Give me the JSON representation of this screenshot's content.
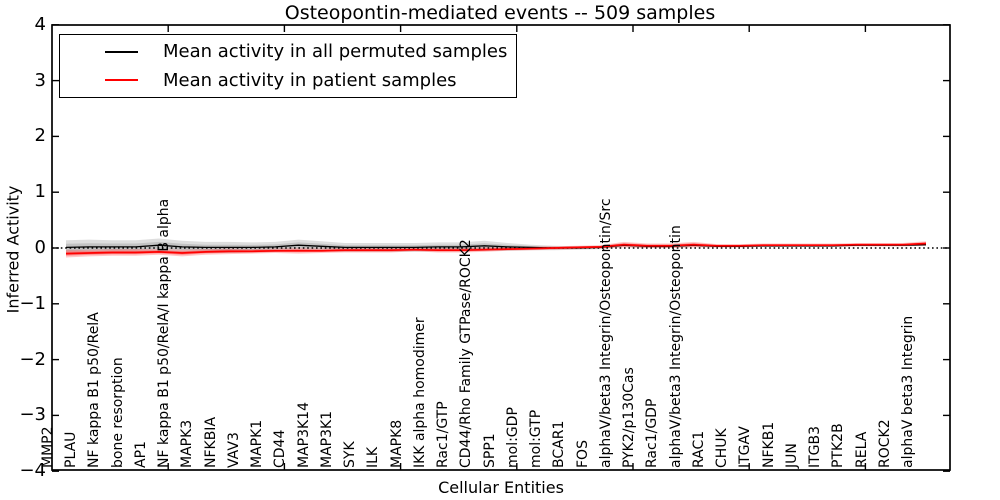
{
  "title": "Osteopontin-mediated events -- 509 samples",
  "axes": {
    "xlabel": "Cellular Entities",
    "ylabel": "Inferred Activity",
    "ytick_labels": [
      "4",
      "3",
      "2",
      "1",
      "0",
      "−1",
      "−2",
      "−3",
      "−4"
    ]
  },
  "legend": {
    "position": "upper left"
  },
  "chart_data": {
    "type": "line",
    "title": "Osteopontin-mediated events -- 509 samples",
    "xlabel": "Cellular Entities",
    "ylabel": "Inferred Activity",
    "ylim": [
      -4,
      4
    ],
    "yticks": [
      4,
      3,
      2,
      1,
      0,
      -1,
      -2,
      -3,
      -4
    ],
    "xticks": [
      5,
      10,
      15,
      20,
      25,
      30,
      35
    ],
    "grid": false,
    "legend_position": "upper left",
    "zero_line": {
      "style": "dotted",
      "y": 0,
      "color": "#000000"
    },
    "categories": [
      "MMP2",
      "PLAU",
      "NF kappa B1 p50/RelA",
      "bone resorption",
      "AP1",
      "NF kappa B1 p50/RelA/I kappa B alpha",
      "MAPK3",
      "NFKBIA",
      "VAV3",
      "MAPK1",
      "CD44",
      "MAP3K14",
      "MAP3K1",
      "SYK",
      "ILK",
      "MAPK8",
      "IKK alpha homodimer",
      "Rac1/GTP",
      "CD44/Rho Family GTPase/ROCK2",
      "SPP1",
      "mol:GDP",
      "mol:GTP",
      "BCAR1",
      "FOS",
      "alphaV/beta3 Integrin/Osteopontin/Src",
      "PYK2/p130Cas",
      "Rac1/GDP",
      "alphaV/beta3 Integrin/Osteopontin",
      "RAC1",
      "CHUK",
      "ITGAV",
      "NFKB1",
      "JUN",
      "ITGB3",
      "PTK2B",
      "RELA",
      "ROCK2",
      "alphaV beta3 Integrin"
    ],
    "series": [
      {
        "name": "Mean activity in all permuted samples",
        "color": "#000000",
        "values": [
          0.01,
          0.02,
          0.02,
          0.02,
          0.05,
          0.02,
          0.01,
          0.01,
          0.01,
          0.02,
          0.05,
          0.03,
          0.01,
          0.01,
          0.01,
          0.01,
          0.02,
          0.02,
          0.04,
          0.02,
          0.01,
          0.0,
          0.0,
          0.01,
          0.05,
          0.03,
          0.03,
          0.05,
          0.03,
          0.03,
          0.04,
          0.04,
          0.04,
          0.04,
          0.05,
          0.05,
          0.05,
          0.06
        ],
        "band_halfwidth": [
          0.13,
          0.13,
          0.12,
          0.12,
          0.12,
          0.11,
          0.1,
          0.1,
          0.09,
          0.09,
          0.1,
          0.09,
          0.08,
          0.08,
          0.08,
          0.08,
          0.08,
          0.08,
          0.09,
          0.07,
          0.05,
          0.04,
          0.03,
          0.03,
          0.03,
          0.03,
          0.03,
          0.03,
          0.02,
          0.02,
          0.02,
          0.02,
          0.02,
          0.02,
          0.02,
          0.02,
          0.02,
          0.02
        ]
      },
      {
        "name": "Mean activity in patient samples",
        "color": "#ff0000",
        "values": [
          -0.1,
          -0.09,
          -0.08,
          -0.08,
          -0.07,
          -0.09,
          -0.07,
          -0.06,
          -0.06,
          -0.05,
          -0.05,
          -0.05,
          -0.04,
          -0.04,
          -0.04,
          -0.03,
          -0.04,
          -0.04,
          -0.03,
          -0.02,
          -0.01,
          0.0,
          0.01,
          0.02,
          0.06,
          0.04,
          0.04,
          0.06,
          0.04,
          0.04,
          0.05,
          0.05,
          0.05,
          0.05,
          0.06,
          0.06,
          0.06,
          0.08
        ],
        "band_halfwidth": [
          0.07,
          0.06,
          0.06,
          0.06,
          0.05,
          0.06,
          0.05,
          0.05,
          0.04,
          0.04,
          0.05,
          0.04,
          0.04,
          0.04,
          0.04,
          0.03,
          0.04,
          0.04,
          0.04,
          0.03,
          0.03,
          0.03,
          0.03,
          0.03,
          0.05,
          0.04,
          0.04,
          0.05,
          0.03,
          0.03,
          0.03,
          0.03,
          0.03,
          0.03,
          0.03,
          0.03,
          0.03,
          0.04
        ]
      }
    ]
  }
}
